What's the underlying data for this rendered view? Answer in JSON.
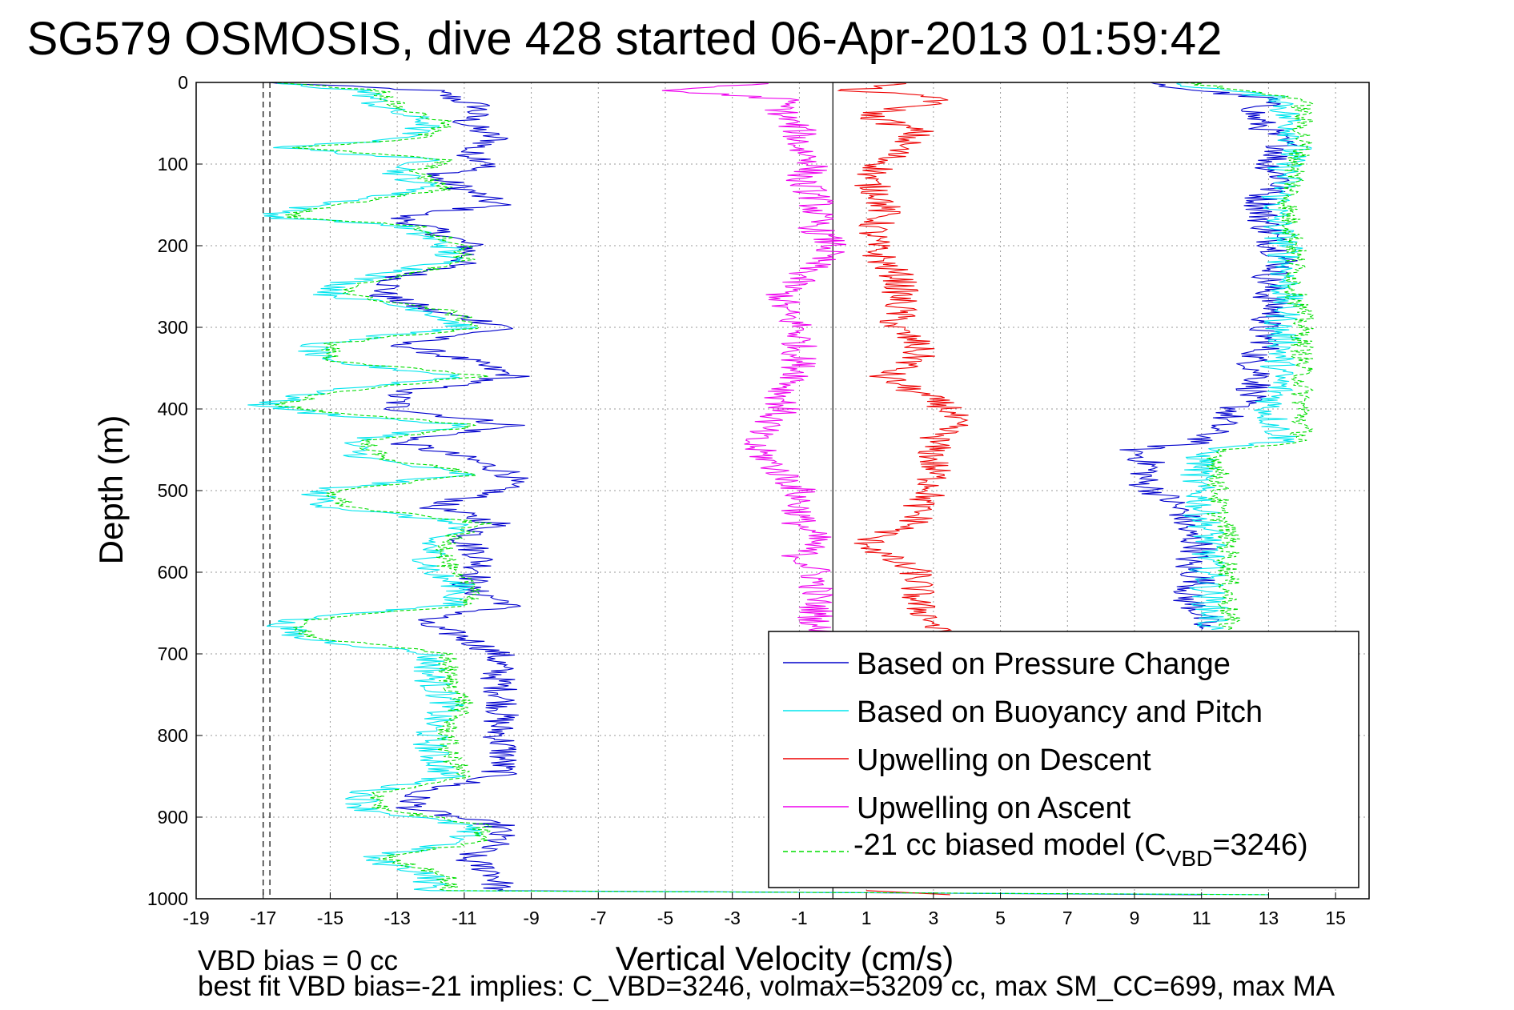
{
  "chart_data": {
    "type": "line",
    "title": "SG579 OSMOSIS, dive 428 started 06-Apr-2013 01:59:42",
    "xlabel": "Vertical Velocity (cm/s)",
    "ylabel": "Depth (m)",
    "xlim": [
      -19,
      16
    ],
    "ylim": [
      0,
      1000
    ],
    "y_reversed": true,
    "grid": true,
    "legend_position": "bottom-right",
    "xticks": [
      -19,
      -17,
      -15,
      -13,
      -11,
      -9,
      -7,
      -5,
      -3,
      -1,
      1,
      3,
      5,
      7,
      9,
      11,
      13,
      15
    ],
    "yticks": [
      0,
      100,
      200,
      300,
      400,
      500,
      600,
      700,
      800,
      900,
      1000
    ],
    "reference_lines": {
      "dashed_x": [
        -17,
        -16.8
      ],
      "solid_x": 0
    },
    "notes": [
      "VBD bias = 0 cc",
      "best fit VBD bias=-21 implies: C_VBD=3246, volmax=53209 cc, max SM_CC=699, max MA"
    ],
    "legend": [
      {
        "label": "Based on Pressure Change",
        "color": "#0000cc"
      },
      {
        "label": "Based on Buoyancy and Pitch",
        "color": "#00e5ee"
      },
      {
        "label": "Upwelling on Descent",
        "color": "#ee0000"
      },
      {
        "label": "Upwelling on Ascent",
        "color": "#ee00ee"
      },
      {
        "label_prefix": "-21 cc biased model (C",
        "label_sub": "VBD",
        "label_suffix": "=3246)",
        "color": "#00dd00",
        "dashed": true
      }
    ],
    "series": [
      {
        "name": "Based on Pressure Change",
        "color": "#0000cc",
        "segments": [
          {
            "depth": [
              0,
              10,
              30,
              50,
              70,
              85,
              100,
              115,
              130,
              150,
              165,
              180,
              200,
              220,
              240,
              260,
              280,
              300,
              320,
              340,
              360,
              380,
              400,
              420,
              440,
              460,
              480,
              500,
              520,
              540,
              560,
              580,
              600,
              620,
              640,
              660,
              680,
              700,
              730,
              760,
              790,
              820,
              850,
              870,
              890,
              910,
              930,
              950,
              970,
              990
            ],
            "v": [
              -17,
              -12,
              -10.5,
              -11,
              -10,
              -11,
              -10,
              -12,
              -11,
              -10,
              -13,
              -12,
              -10.8,
              -11,
              -13,
              -13.5,
              -12,
              -9.5,
              -13,
              -11,
              -9.5,
              -13,
              -13,
              -9.5,
              -13,
              -11,
              -9.5,
              -10,
              -12,
              -10,
              -11,
              -10.5,
              -10.5,
              -11,
              -9.5,
              -12.5,
              -11,
              -10,
              -10,
              -9.8,
              -10,
              -9.8,
              -10,
              -12.5,
              -12.5,
              -10,
              -10,
              -11,
              -10,
              -10
            ]
          },
          {
            "depth": [
              990,
              995
            ],
            "v": [
              -10,
              11
            ]
          },
          {
            "depth": [
              0,
              20,
              40,
              60,
              80,
              100,
              120,
              140,
              160,
              180,
              200,
              220,
              240,
              260,
              280,
              300,
              320,
              340,
              360,
              380,
              400,
              420,
              440,
              450,
              470,
              490,
              510,
              530,
              550,
              570,
              590,
              610,
              630,
              650,
              670
            ],
            "v": [
              9,
              13,
              12.5,
              13,
              13.5,
              13,
              13.5,
              12.8,
              12.8,
              13,
              13.2,
              13.5,
              13,
              13,
              13.2,
              12.8,
              13,
              12.5,
              12.8,
              12.5,
              12,
              11.5,
              11,
              9,
              9.5,
              9.2,
              10,
              10.5,
              10.5,
              11,
              10.5,
              11,
              10.5,
              11,
              11
            ]
          }
        ]
      },
      {
        "name": "Based on Buoyancy and Pitch",
        "color": "#00e5ee",
        "segments": [
          {
            "depth": [
              0,
              10,
              30,
              50,
              70,
              80,
              95,
              110,
              130,
              155,
              165,
              175,
              200,
              220,
              245,
              260,
              280,
              300,
              320,
              340,
              360,
              380,
              395,
              405,
              420,
              440,
              460,
              480,
              500,
              520,
              540,
              560,
              580,
              600,
              620,
              640,
              660,
              680,
              700,
              730,
              760,
              790,
              820,
              850,
              870,
              890,
              910,
              930,
              950,
              970,
              990
            ],
            "v": [
              -17,
              -14,
              -13.5,
              -12,
              -13,
              -16.5,
              -12,
              -13,
              -12,
              -16,
              -16.8,
              -13,
              -11.5,
              -11.5,
              -14.5,
              -15,
              -12,
              -11,
              -15.5,
              -15.5,
              -11,
              -15.5,
              -17,
              -15.5,
              -11,
              -14.5,
              -14,
              -11,
              -15.5,
              -15,
              -11,
              -12,
              -12,
              -12,
              -11,
              -11.5,
              -16.5,
              -16,
              -12,
              -12,
              -11.5,
              -12,
              -12,
              -11.5,
              -14,
              -14,
              -11,
              -11,
              -14,
              -12,
              -12
            ]
          },
          {
            "depth": [
              990,
              995
            ],
            "v": [
              -12,
              13
            ]
          },
          {
            "depth": [
              0,
              20,
              40,
              60,
              80,
              100,
              120,
              140,
              160,
              180,
              200,
              220,
              240,
              260,
              280,
              300,
              320,
              340,
              360,
              380,
              400,
              420,
              440,
              450,
              470,
              490,
              510,
              530,
              550,
              570,
              590,
              610,
              630,
              650,
              670
            ],
            "v": [
              10,
              13.5,
              13.5,
              13.8,
              13.8,
              13.5,
              13.5,
              13.3,
              13.2,
              13.3,
              13.5,
              13.5,
              13.5,
              13.5,
              13.5,
              13.3,
              13.5,
              13.3,
              13.3,
              13.3,
              13,
              13.2,
              13.5,
              11,
              11,
              10.8,
              11,
              11,
              11.2,
              11.2,
              11.2,
              11.2,
              11.2,
              11.3,
              11.3
            ]
          }
        ]
      },
      {
        "name": "Upwelling on Descent",
        "color": "#ee0000",
        "segments": [
          {
            "depth": [
              0,
              10,
              20,
              40,
              60,
              80,
              100,
              120,
              140,
              160,
              180,
              200,
              220,
              240,
              260,
              280,
              300,
              320,
              340,
              360,
              380,
              400,
              420,
              440,
              460,
              480,
              500,
              520,
              540,
              560,
              580,
              600,
              620,
              640,
              660,
              680
            ],
            "v": [
              2,
              0.5,
              3.5,
              1,
              2.5,
              2,
              1.5,
              1,
              1.5,
              1.5,
              1.2,
              1.2,
              1.5,
              2,
              2,
              2,
              1.8,
              2.5,
              2.5,
              1.5,
              2.5,
              3.5,
              3.5,
              3,
              3,
              3,
              3,
              2.5,
              2.5,
              1,
              1.5,
              2.5,
              2.5,
              2.5,
              3,
              3
            ]
          },
          {
            "depth": [
              990,
              995
            ],
            "v": [
              1,
              3.5
            ]
          }
        ]
      },
      {
        "name": "Upwelling on Ascent",
        "color": "#ee00ee",
        "segments": [
          {
            "depth": [
              0,
              10,
              20,
              40,
              60,
              80,
              100,
              120,
              140,
              160,
              180,
              200,
              220,
              240,
              260,
              280,
              300,
              320,
              340,
              360,
              380,
              400,
              420,
              440,
              460,
              480,
              500,
              520,
              540,
              560,
              580,
              600,
              620,
              640,
              660,
              680
            ],
            "v": [
              -2,
              -5,
              -1.5,
              -1.5,
              -1,
              -1,
              -0.5,
              -1,
              -0.5,
              -0.5,
              -0.5,
              0,
              -0.5,
              -1,
              -1.5,
              -1.5,
              -1,
              -1,
              -1,
              -1,
              -1.5,
              -1.5,
              -2,
              -2.5,
              -2,
              -1.5,
              -1,
              -1,
              -1,
              -0.5,
              -1,
              -0.5,
              -0.5,
              -0.5,
              -0.5,
              -0.5
            ]
          }
        ]
      },
      {
        "name": "-21 cc biased model (C VBD=3246)",
        "color": "#00dd00",
        "dashed": true,
        "segments": [
          {
            "depth": [
              0,
              10,
              30,
              50,
              70,
              80,
              95,
              110,
              130,
              155,
              165,
              175,
              200,
              220,
              245,
              260,
              280,
              300,
              320,
              340,
              360,
              380,
              395,
              405,
              420,
              440,
              460,
              480,
              500,
              520,
              540,
              560,
              580,
              600,
              620,
              640,
              660,
              680,
              700,
              730,
              760,
              790,
              820,
              850,
              870,
              890,
              910,
              930,
              950,
              970,
              990
            ],
            "v": [
              -16.5,
              -13.5,
              -13,
              -11.5,
              -12.5,
              -16,
              -11.5,
              -12.5,
              -11.5,
              -15.5,
              -16.3,
              -12.5,
              -11,
              -11,
              -14,
              -14.5,
              -11.5,
              -10.5,
              -15,
              -15,
              -10.5,
              -15,
              -16.5,
              -15,
              -10.5,
              -14,
              -13.5,
              -10.5,
              -15,
              -14.5,
              -10.5,
              -11.5,
              -11.5,
              -11.5,
              -10.5,
              -11,
              -16,
              -15.5,
              -11.5,
              -11.5,
              -11,
              -11.5,
              -11.5,
              -11,
              -13.5,
              -13.5,
              -10.5,
              -10.5,
              -13.5,
              -11.5,
              -11.5
            ]
          },
          {
            "depth": [
              990,
              995
            ],
            "v": [
              -11.5,
              13
            ]
          },
          {
            "depth": [
              0,
              20,
              40,
              60,
              80,
              100,
              120,
              140,
              160,
              180,
              200,
              220,
              240,
              260,
              280,
              300,
              320,
              340,
              360,
              380,
              400,
              420,
              440,
              450,
              470,
              490,
              510,
              530,
              550,
              570,
              590,
              610,
              630,
              650,
              670
            ],
            "v": [
              10.5,
              14,
              14,
              14,
              14,
              13.8,
              13.8,
              13.6,
              13.6,
              13.7,
              13.8,
              13.8,
              13.8,
              13.8,
              14,
              14,
              14,
              14,
              14,
              14,
              14,
              14,
              14,
              11.5,
              11.5,
              11.5,
              11.5,
              11.5,
              11.8,
              11.8,
              11.8,
              11.8,
              11.8,
              11.8,
              11.8
            ]
          }
        ]
      }
    ]
  }
}
